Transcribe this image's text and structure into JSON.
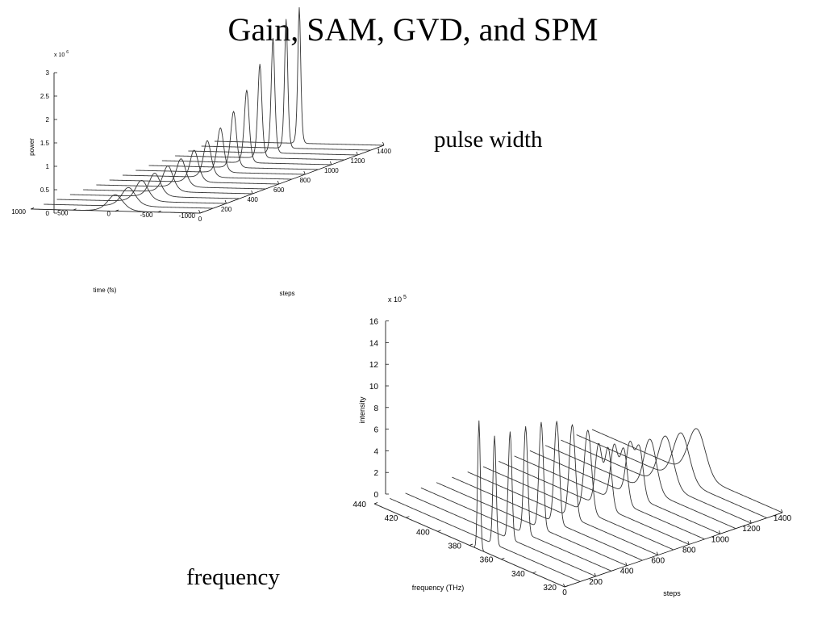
{
  "slide": {
    "title": "Gain, SAM, GVD, and SPM",
    "captions": {
      "pulse": "pulse width",
      "frequency": "frequency"
    }
  },
  "chart_data": [
    {
      "type": "waterfall-3d",
      "zlabel": "power",
      "xlabel": "time (fs)",
      "ylabel": "steps",
      "exponent_label": "x 10",
      "exponent_power": "6",
      "z_ticks": [
        "0",
        "0.5",
        "1",
        "1.5",
        "2",
        "2.5",
        "3"
      ],
      "z_tick_values": [
        0,
        0.5,
        1,
        1.5,
        2,
        2.5,
        3
      ],
      "x_ticks": [
        "1000",
        "500",
        "0",
        "-500",
        "-1000"
      ],
      "x_tick_values": [
        1000,
        500,
        0,
        -500,
        -1000
      ],
      "y_ticks": [
        "0",
        "200",
        "400",
        "600",
        "800",
        "1000",
        "1200",
        "1400"
      ],
      "y_tick_values": [
        0,
        200,
        400,
        600,
        800,
        1000,
        1200,
        1400
      ],
      "xlim": [
        -1000,
        1000
      ],
      "ylim": [
        0,
        1400
      ],
      "zlim": [
        0,
        3
      ],
      "grid": false,
      "series": [
        {
          "step": 0,
          "peak": 0.35,
          "center": 0,
          "width_fs": 120
        },
        {
          "step": 100,
          "peak": 0.4,
          "center": 0,
          "width_fs": 110
        },
        {
          "step": 200,
          "peak": 0.45,
          "center": 0,
          "width_fs": 100
        },
        {
          "step": 300,
          "peak": 0.5,
          "center": 0,
          "width_fs": 90
        },
        {
          "step": 400,
          "peak": 0.55,
          "center": 0,
          "width_fs": 82
        },
        {
          "step": 500,
          "peak": 0.6,
          "center": 0,
          "width_fs": 75
        },
        {
          "step": 600,
          "peak": 0.68,
          "center": 0,
          "width_fs": 68
        },
        {
          "step": 700,
          "peak": 0.78,
          "center": 0,
          "width_fs": 60
        },
        {
          "step": 800,
          "peak": 0.95,
          "center": 0,
          "width_fs": 52
        },
        {
          "step": 900,
          "peak": 1.2,
          "center": 0,
          "width_fs": 45
        },
        {
          "step": 1000,
          "peak": 1.55,
          "center": 0,
          "width_fs": 38
        },
        {
          "step": 1100,
          "peak": 2.0,
          "center": 0,
          "width_fs": 32
        },
        {
          "step": 1200,
          "peak": 2.45,
          "center": 0,
          "width_fs": 28
        },
        {
          "step": 1300,
          "peak": 2.75,
          "center": 0,
          "width_fs": 25
        },
        {
          "step": 1400,
          "peak": 2.9,
          "center": 0,
          "width_fs": 23
        }
      ]
    },
    {
      "type": "waterfall-3d",
      "zlabel": "intensity",
      "xlabel": "frequency (THz)",
      "ylabel": "steps",
      "exponent_label": "x 10",
      "exponent_power": "5",
      "z_ticks": [
        "0",
        "2",
        "4",
        "6",
        "8",
        "10",
        "12",
        "14",
        "16"
      ],
      "z_tick_values": [
        0,
        2,
        4,
        6,
        8,
        10,
        12,
        14,
        16
      ],
      "x_ticks": [
        "440",
        "420",
        "400",
        "380",
        "360",
        "340",
        "320"
      ],
      "x_tick_values": [
        440,
        420,
        400,
        380,
        360,
        340,
        320
      ],
      "y_ticks": [
        "0",
        "200",
        "400",
        "600",
        "800",
        "1000",
        "1200",
        "1400"
      ],
      "y_tick_values": [
        0,
        200,
        400,
        600,
        800,
        1000,
        1200,
        1400
      ],
      "xlim": [
        320,
        440
      ],
      "ylim": [
        0,
        1400
      ],
      "zlim": [
        0,
        16
      ],
      "grid": false,
      "series": [
        {
          "step": 0,
          "peaks": [
            {
              "center": 374,
              "height": 11.9,
              "width": 1.2
            }
          ]
        },
        {
          "step": 100,
          "peaks": [
            {
              "center": 374,
              "height": 10.0,
              "width": 1.4
            }
          ]
        },
        {
          "step": 200,
          "peaks": [
            {
              "center": 374,
              "height": 9.9,
              "width": 1.6
            }
          ]
        },
        {
          "step": 300,
          "peaks": [
            {
              "center": 374,
              "height": 9.9,
              "width": 1.8
            }
          ]
        },
        {
          "step": 400,
          "peaks": [
            {
              "center": 374,
              "height": 9.8,
              "width": 2.0
            }
          ]
        },
        {
          "step": 500,
          "peaks": [
            {
              "center": 374,
              "height": 9.4,
              "width": 2.3
            }
          ]
        },
        {
          "step": 600,
          "peaks": [
            {
              "center": 374,
              "height": 8.6,
              "width": 2.7
            }
          ]
        },
        {
          "step": 700,
          "peaks": [
            {
              "center": 374,
              "height": 7.6,
              "width": 3.2
            }
          ]
        },
        {
          "step": 800,
          "peaks": [
            {
              "center": 371,
              "height": 5.6,
              "width": 3.0
            },
            {
              "center": 377,
              "height": 5.6,
              "width": 3.0
            }
          ]
        },
        {
          "step": 900,
          "peaks": [
            {
              "center": 371,
              "height": 5.0,
              "width": 3.2
            },
            {
              "center": 377,
              "height": 5.0,
              "width": 3.2
            }
          ]
        },
        {
          "step": 1000,
          "peaks": [
            {
              "center": 371,
              "height": 4.7,
              "width": 3.4
            },
            {
              "center": 377,
              "height": 4.7,
              "width": 3.4
            }
          ]
        },
        {
          "step": 1100,
          "peaks": [
            {
              "center": 374,
              "height": 4.8,
              "width": 5.5
            }
          ]
        },
        {
          "step": 1200,
          "peaks": [
            {
              "center": 374,
              "height": 4.6,
              "width": 6.5
            }
          ]
        },
        {
          "step": 1300,
          "peaks": [
            {
              "center": 374,
              "height": 4.4,
              "width": 7.0
            }
          ]
        },
        {
          "step": 1400,
          "peaks": [
            {
              "center": 374,
              "height": 4.3,
              "width": 7.5
            }
          ]
        }
      ]
    }
  ]
}
